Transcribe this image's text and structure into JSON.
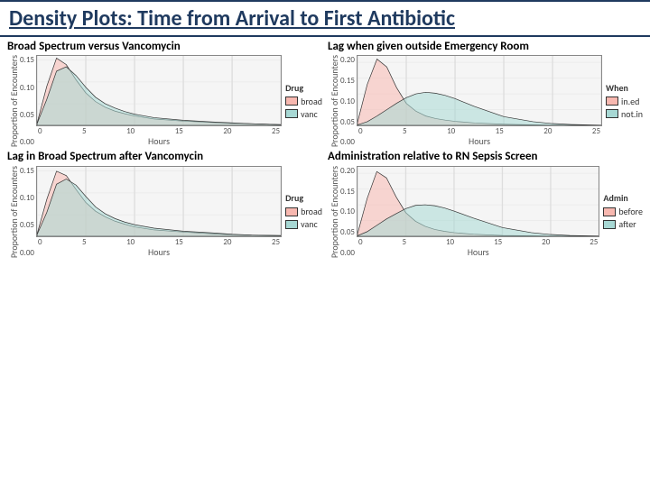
{
  "page": {
    "title": "Density Plots: Time from Arrival to First Antibiotic",
    "title_color": "#1f3a5f",
    "title_fontsize": 24,
    "border_color": "#1f3a5f",
    "background": "#ffffff"
  },
  "common": {
    "xlabel": "Hours",
    "ylabel": "Proportion of Encounters",
    "xlim": [
      0,
      25
    ],
    "xticks": [
      0,
      5,
      10,
      15,
      20,
      25
    ],
    "plot_bg": "#f5f5f5",
    "grid_color": "#dddddd",
    "line_width": 1,
    "fill_opacity": 0.55,
    "axis_font_size": 10,
    "tick_font_size": 9
  },
  "panels": [
    {
      "id": 1,
      "title": "Broad Spectrum versus Vancomycin",
      "ylim": [
        0,
        0.16
      ],
      "yticks": [
        "0.00",
        "0.05",
        "0.10",
        "0.15"
      ],
      "legend": {
        "title": "Drug",
        "items": [
          {
            "label": "broad",
            "color": "#f8b8b0"
          },
          {
            "label": "vanc",
            "color": "#a7d8d4"
          }
        ]
      },
      "series": [
        {
          "name": "broad",
          "color": "#f8b8b0",
          "stroke": "#333333",
          "x": [
            0,
            1,
            2,
            3,
            4,
            5,
            6,
            7,
            8,
            9,
            10,
            12,
            15,
            18,
            20,
            22,
            25
          ],
          "y": [
            0.005,
            0.09,
            0.155,
            0.14,
            0.105,
            0.075,
            0.055,
            0.042,
            0.033,
            0.027,
            0.022,
            0.015,
            0.01,
            0.007,
            0.005,
            0.004,
            0.002
          ]
        },
        {
          "name": "vanc",
          "color": "#a7d8d4",
          "stroke": "#333333",
          "x": [
            0,
            1,
            2,
            3,
            4,
            5,
            6,
            7,
            8,
            9,
            10,
            12,
            15,
            18,
            20,
            22,
            25
          ],
          "y": [
            0.004,
            0.06,
            0.125,
            0.135,
            0.115,
            0.088,
            0.065,
            0.05,
            0.04,
            0.032,
            0.026,
            0.018,
            0.012,
            0.008,
            0.006,
            0.004,
            0.002
          ]
        }
      ]
    },
    {
      "id": 3,
      "title": "Lag when given outside Emergency Room",
      "ylim": [
        0,
        0.22
      ],
      "yticks": [
        "0.00",
        "0.05",
        "0.10",
        "0.15",
        "0.20"
      ],
      "legend": {
        "title": "When",
        "items": [
          {
            "label": "in.ed",
            "color": "#f8b8b0"
          },
          {
            "label": "not.in",
            "color": "#a7d8d4"
          }
        ]
      },
      "series": [
        {
          "name": "in.ed",
          "color": "#f8b8b0",
          "stroke": "#333333",
          "x": [
            0,
            1,
            2,
            3,
            4,
            5,
            6,
            7,
            8,
            9,
            10,
            12,
            15,
            18,
            20,
            22,
            25
          ],
          "y": [
            0.01,
            0.13,
            0.21,
            0.185,
            0.12,
            0.07,
            0.045,
            0.03,
            0.022,
            0.017,
            0.013,
            0.008,
            0.004,
            0.002,
            0.001,
            0.001,
            0.0
          ]
        },
        {
          "name": "not.in",
          "color": "#a7d8d4",
          "stroke": "#333333",
          "x": [
            0,
            1,
            2,
            3,
            4,
            5,
            6,
            7,
            8,
            9,
            10,
            12,
            15,
            18,
            20,
            22,
            25
          ],
          "y": [
            0.002,
            0.012,
            0.03,
            0.05,
            0.07,
            0.088,
            0.1,
            0.105,
            0.102,
            0.095,
            0.085,
            0.06,
            0.028,
            0.012,
            0.006,
            0.003,
            0.001
          ]
        }
      ]
    },
    {
      "id": 2,
      "title": "Lag in Broad Spectrum after Vancomycin",
      "ylim": [
        0,
        0.16
      ],
      "yticks": [
        "0.00",
        "0.05",
        "0.10",
        "0.15"
      ],
      "legend": {
        "title": "Drug",
        "items": [
          {
            "label": "broad",
            "color": "#f8b8b0"
          },
          {
            "label": "vanc",
            "color": "#a7d8d4"
          }
        ]
      },
      "series": [
        {
          "name": "broad",
          "color": "#f8b8b0",
          "stroke": "#333333",
          "x": [
            0,
            1,
            2,
            3,
            4,
            5,
            6,
            7,
            8,
            9,
            10,
            12,
            15,
            18,
            20,
            22,
            25
          ],
          "y": [
            0.005,
            0.085,
            0.15,
            0.14,
            0.108,
            0.078,
            0.058,
            0.045,
            0.035,
            0.028,
            0.022,
            0.015,
            0.01,
            0.006,
            0.004,
            0.003,
            0.002
          ]
        },
        {
          "name": "vanc",
          "color": "#a7d8d4",
          "stroke": "#333333",
          "x": [
            0,
            1,
            2,
            3,
            4,
            5,
            6,
            7,
            8,
            9,
            10,
            12,
            15,
            18,
            20,
            22,
            25
          ],
          "y": [
            0.004,
            0.055,
            0.12,
            0.132,
            0.118,
            0.092,
            0.068,
            0.052,
            0.041,
            0.033,
            0.027,
            0.019,
            0.012,
            0.008,
            0.005,
            0.003,
            0.002
          ]
        }
      ]
    },
    {
      "id": 4,
      "title": "Administration relative to RN Sepsis Screen",
      "ylim": [
        0,
        0.22
      ],
      "yticks": [
        "0.00",
        "0.05",
        "0.10",
        "0.15",
        "0.20"
      ],
      "legend": {
        "title": "Admin",
        "items": [
          {
            "label": "before",
            "color": "#f8b8b0"
          },
          {
            "label": "after",
            "color": "#a7d8d4"
          }
        ]
      },
      "series": [
        {
          "name": "before",
          "color": "#f8b8b0",
          "stroke": "#333333",
          "x": [
            0,
            1,
            2,
            3,
            4,
            5,
            6,
            7,
            8,
            9,
            10,
            12,
            15,
            18,
            20,
            22,
            25
          ],
          "y": [
            0.008,
            0.12,
            0.205,
            0.185,
            0.125,
            0.075,
            0.048,
            0.032,
            0.022,
            0.016,
            0.012,
            0.007,
            0.003,
            0.002,
            0.001,
            0.001,
            0.0
          ]
        },
        {
          "name": "after",
          "color": "#a7d8d4",
          "stroke": "#333333",
          "x": [
            0,
            1,
            2,
            3,
            4,
            5,
            6,
            7,
            8,
            9,
            10,
            12,
            15,
            18,
            20,
            22,
            25
          ],
          "y": [
            0.002,
            0.015,
            0.035,
            0.055,
            0.072,
            0.088,
            0.098,
            0.1,
            0.097,
            0.09,
            0.08,
            0.058,
            0.028,
            0.012,
            0.006,
            0.003,
            0.001
          ]
        }
      ]
    }
  ]
}
